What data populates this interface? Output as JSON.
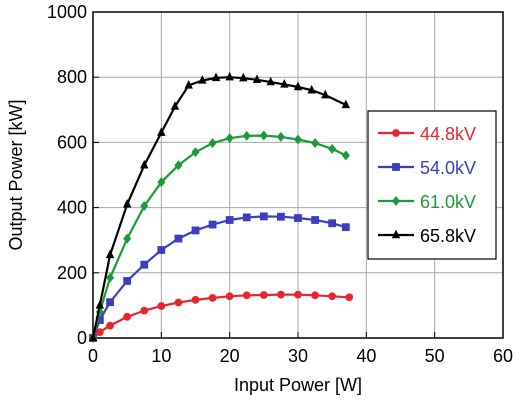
{
  "chart_data": {
    "type": "line",
    "xlabel": "Input Power [W]",
    "ylabel": "Output Power [kW]",
    "xlim": [
      0,
      60
    ],
    "ylim": [
      0,
      1000
    ],
    "xticks": [
      0,
      10,
      20,
      30,
      40,
      50,
      60
    ],
    "yticks": [
      0,
      200,
      400,
      600,
      800,
      1000
    ],
    "grid": true,
    "legend_position": "right",
    "series": [
      {
        "name": "44.8kV",
        "color": "#e8262d",
        "marker": "circle",
        "x": [
          0,
          1,
          2.5,
          5,
          7.5,
          10,
          12.5,
          15,
          17.5,
          20,
          22.5,
          25,
          27.5,
          30,
          32.5,
          35,
          37.5
        ],
        "y": [
          0,
          18,
          38,
          65,
          84,
          98,
          109,
          117,
          123,
          128,
          131,
          132,
          133,
          133,
          131,
          128,
          125
        ]
      },
      {
        "name": "54.0kV",
        "color": "#3d3dc0",
        "marker": "square",
        "x": [
          0,
          1,
          2.5,
          5,
          7.5,
          10,
          12.5,
          15,
          17.5,
          20,
          22.5,
          25,
          27.5,
          30,
          32.5,
          35,
          37
        ],
        "y": [
          0,
          55,
          110,
          175,
          225,
          270,
          305,
          330,
          348,
          362,
          370,
          373,
          372,
          368,
          362,
          352,
          340
        ]
      },
      {
        "name": "61.0kV",
        "color": "#1e9a3a",
        "marker": "diamond",
        "x": [
          0,
          1,
          2.5,
          5,
          7.5,
          10,
          12.5,
          15,
          17.5,
          20,
          22.5,
          25,
          27.5,
          30,
          32.5,
          35,
          37
        ],
        "y": [
          0,
          80,
          185,
          305,
          405,
          478,
          530,
          570,
          598,
          613,
          620,
          621,
          617,
          609,
          598,
          580,
          560
        ]
      },
      {
        "name": "65.8kV",
        "color": "#000000",
        "marker": "triangle",
        "x": [
          0,
          1,
          2.5,
          5,
          7.5,
          10,
          12,
          14,
          16,
          18,
          20,
          22,
          24,
          26,
          28,
          30,
          32,
          34,
          37
        ],
        "y": [
          0,
          100,
          255,
          410,
          530,
          630,
          710,
          775,
          790,
          798,
          800,
          797,
          792,
          785,
          778,
          770,
          760,
          745,
          715
        ]
      }
    ]
  }
}
